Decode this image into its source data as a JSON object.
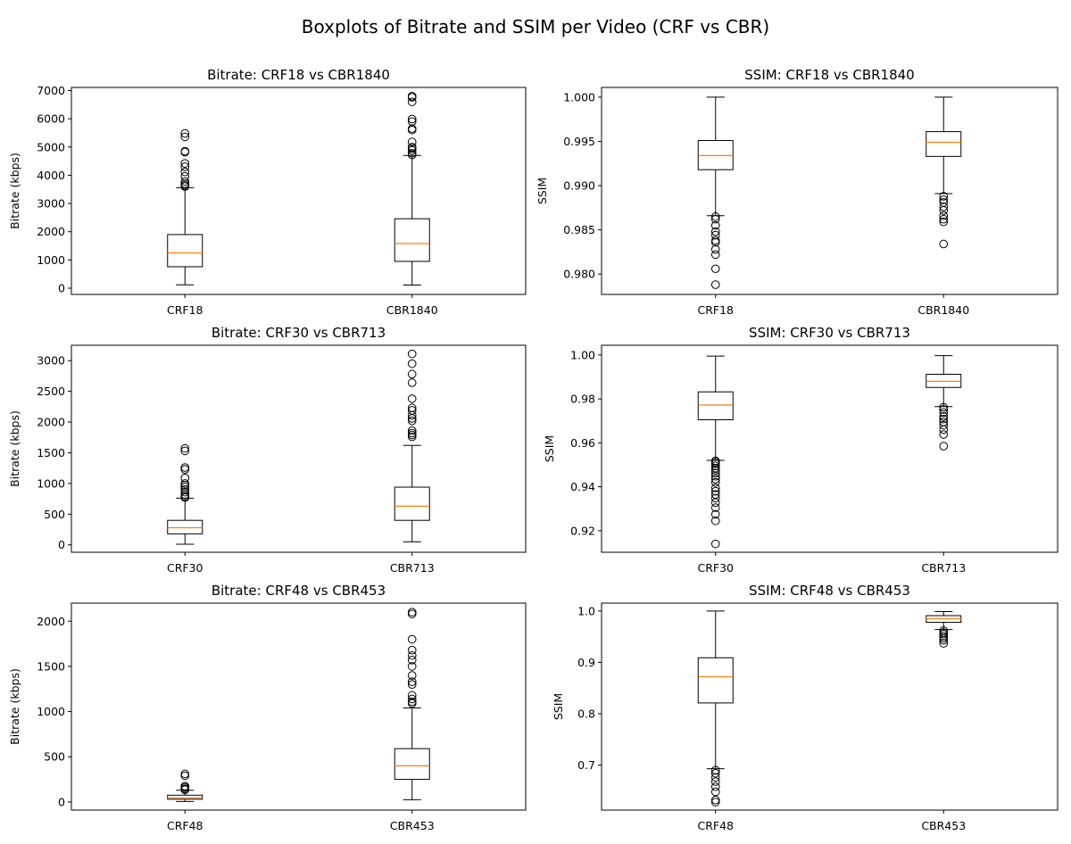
{
  "figure": {
    "title": "Boxplots of Bitrate and SSIM per Video (CRF vs CBR)"
  },
  "colors": {
    "box": "#000000",
    "median": "#ff7f0e",
    "background": "#ffffff"
  },
  "chart_data": [
    {
      "type": "boxplot",
      "title": "Bitrate: CRF18 vs CBR1840",
      "ylabel": "Bitrate (kbps)",
      "ylim": [
        -220,
        7110
      ],
      "yticks": [
        0,
        1000,
        2000,
        3000,
        4000,
        5000,
        6000,
        7000
      ],
      "categories": [
        "CRF18",
        "CBR1840"
      ],
      "boxes": [
        {
          "whisker_low": 120,
          "q1": 760,
          "median": 1250,
          "q3": 1900,
          "whisker_high": 3560,
          "outliers": [
            3600,
            3640,
            3700,
            3780,
            3960,
            4120,
            4300,
            4420,
            4820,
            4850,
            5360,
            5480
          ]
        },
        {
          "whisker_low": 110,
          "q1": 950,
          "median": 1580,
          "q3": 2460,
          "whisker_high": 4700,
          "outliers": [
            4720,
            4780,
            4880,
            4950,
            5000,
            5180,
            5600,
            5650,
            5900,
            5990,
            6600,
            6760,
            6800
          ]
        }
      ]
    },
    {
      "type": "boxplot",
      "title": "SSIM: CRF18 vs CBR1840",
      "ylabel": "SSIM",
      "ylim": [
        0.9777,
        1.0011
      ],
      "yticks": [
        0.98,
        0.985,
        0.99,
        0.995,
        1.0
      ],
      "ytick_decimals": 3,
      "categories": [
        "CRF18",
        "CBR1840"
      ],
      "boxes": [
        {
          "whisker_low": 0.9866,
          "q1": 0.9918,
          "median": 0.9934,
          "q3": 0.9951,
          "whisker_high": 1.0,
          "outliers": [
            0.9865,
            0.9862,
            0.9855,
            0.9848,
            0.9844,
            0.9838,
            0.9836,
            0.9828,
            0.9822,
            0.9806,
            0.9788
          ]
        },
        {
          "whisker_low": 0.9891,
          "q1": 0.9933,
          "median": 0.9949,
          "q3": 0.9961,
          "whisker_high": 1.0,
          "outliers": [
            0.9888,
            0.9884,
            0.9881,
            0.9876,
            0.9872,
            0.9866,
            0.9862,
            0.9859,
            0.9834
          ]
        }
      ]
    },
    {
      "type": "boxplot",
      "title": "Bitrate: CRF30 vs CBR713",
      "ylabel": "Bitrate (kbps)",
      "ylim": [
        -120,
        3250
      ],
      "yticks": [
        0,
        500,
        1000,
        1500,
        2000,
        2500,
        3000
      ],
      "categories": [
        "CRF30",
        "CBR713"
      ],
      "boxes": [
        {
          "whisker_low": 10,
          "q1": 180,
          "median": 280,
          "q3": 400,
          "whisker_high": 760,
          "outliers": [
            770,
            790,
            820,
            860,
            900,
            940,
            970,
            1000,
            1090,
            1230,
            1260,
            1530,
            1570
          ]
        },
        {
          "whisker_low": 50,
          "q1": 400,
          "median": 630,
          "q3": 940,
          "whisker_high": 1620,
          "outliers": [
            1760,
            1790,
            1820,
            1860,
            2020,
            2060,
            2110,
            2190,
            2230,
            2380,
            2640,
            2780,
            2950,
            3110
          ]
        }
      ]
    },
    {
      "type": "boxplot",
      "title": "SSIM: CRF30 vs CBR713",
      "ylabel": "SSIM",
      "ylim": [
        0.9102,
        1.0044
      ],
      "yticks": [
        0.92,
        0.94,
        0.96,
        0.98,
        1.0
      ],
      "ytick_decimals": 2,
      "categories": [
        "CRF30",
        "CBR713"
      ],
      "boxes": [
        {
          "whisker_low": 0.952,
          "q1": 0.9705,
          "median": 0.9772,
          "q3": 0.9832,
          "whisker_high": 0.9995,
          "outliers": [
            0.9518,
            0.9512,
            0.9505,
            0.9495,
            0.9485,
            0.9475,
            0.9462,
            0.9448,
            0.9435,
            0.942,
            0.9395,
            0.938,
            0.9365,
            0.9348,
            0.9328,
            0.9305,
            0.9275,
            0.9245,
            0.914
          ]
        },
        {
          "whisker_low": 0.9765,
          "q1": 0.9852,
          "median": 0.988,
          "q3": 0.9912,
          "whisker_high": 0.9997,
          "outliers": [
            0.9762,
            0.9752,
            0.9738,
            0.972,
            0.9708,
            0.9695,
            0.968,
            0.966,
            0.9638,
            0.9585
          ]
        }
      ]
    },
    {
      "type": "boxplot",
      "title": "Bitrate: CRF48 vs CBR453",
      "ylabel": "Bitrate (kbps)",
      "ylim": [
        -90,
        2200
      ],
      "yticks": [
        0,
        500,
        1000,
        1500,
        2000
      ],
      "categories": [
        "CRF48",
        "CBR453"
      ],
      "boxes": [
        {
          "whisker_low": 5,
          "q1": 30,
          "median": 45,
          "q3": 75,
          "whisker_high": 130,
          "outliers": [
            135,
            145,
            160,
            175,
            290,
            310
          ]
        },
        {
          "whisker_low": 25,
          "q1": 250,
          "median": 400,
          "q3": 590,
          "whisker_high": 1040,
          "outliers": [
            1090,
            1110,
            1140,
            1180,
            1300,
            1330,
            1400,
            1500,
            1570,
            1620,
            1680,
            1800,
            2080,
            2100
          ]
        }
      ]
    },
    {
      "type": "boxplot",
      "title": "SSIM: CRF48 vs CBR453",
      "ylabel": "SSIM",
      "ylim": [
        0.6124,
        1.0154
      ],
      "yticks": [
        0.7,
        0.8,
        0.9,
        1.0
      ],
      "ytick_decimals": 1,
      "categories": [
        "CRF48",
        "CBR453"
      ],
      "boxes": [
        {
          "whisker_low": 0.693,
          "q1": 0.821,
          "median": 0.872,
          "q3": 0.909,
          "whisker_high": 1.0,
          "outliers": [
            0.69,
            0.684,
            0.676,
            0.668,
            0.658,
            0.648,
            0.632,
            0.628
          ]
        },
        {
          "whisker_low": 0.964,
          "q1": 0.978,
          "median": 0.985,
          "q3": 0.991,
          "whisker_high": 0.999,
          "outliers": [
            0.962,
            0.958,
            0.955,
            0.951,
            0.947,
            0.943,
            0.937
          ]
        }
      ]
    }
  ]
}
